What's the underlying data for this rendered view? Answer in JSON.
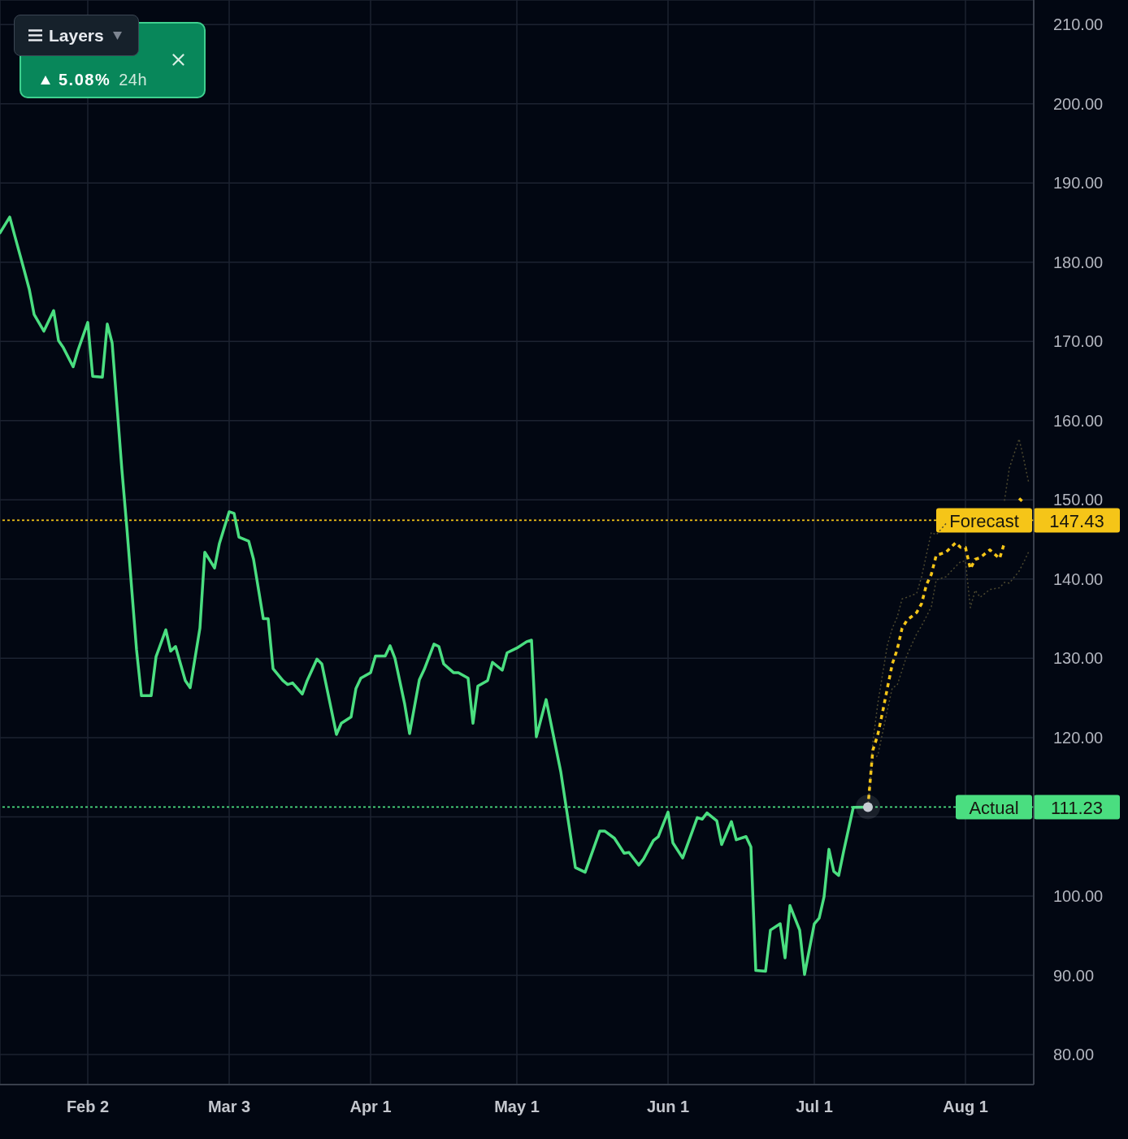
{
  "chart_data": {
    "type": "line",
    "x": [
      "--01-15",
      "--01-17",
      "--01-18",
      "--01-20",
      "--01-21",
      "--01-22",
      "--01-24",
      "--01-26",
      "--01-27",
      "--01-28",
      "--01-30",
      "--01-31",
      "--02-02",
      "--02-03",
      "--02-05",
      "--02-06",
      "--02-07",
      "--02-09",
      "--02-10",
      "--02-12",
      "--02-13",
      "--02-15",
      "--02-16",
      "--02-18",
      "--02-19",
      "--02-20",
      "--02-22",
      "--02-23",
      "--02-25",
      "--02-26",
      "--02-28",
      "--03-01",
      "--03-03",
      "--03-04",
      "--03-05",
      "--03-07",
      "--03-08",
      "--03-10",
      "--03-11",
      "--03-12",
      "--03-14",
      "--03-15",
      "--03-16",
      "--03-18",
      "--03-19",
      "--03-21",
      "--03-22",
      "--03-25",
      "--03-26",
      "--03-28",
      "--03-29",
      "--03-30",
      "--04-01",
      "--04-02",
      "--04-04",
      "--04-05",
      "--04-06",
      "--04-08",
      "--04-09",
      "--04-11",
      "--04-12",
      "--04-14",
      "--04-15",
      "--04-16",
      "--04-18",
      "--04-19",
      "--04-21",
      "--04-22",
      "--04-23",
      "--04-25",
      "--04-26",
      "--04-28",
      "--04-29",
      "--05-01",
      "--05-03",
      "--05-04",
      "--05-05",
      "--05-07",
      "--05-10",
      "--05-13",
      "--05-15",
      "--05-18",
      "--05-19",
      "--05-21",
      "--05-23",
      "--05-24",
      "--05-26",
      "--05-27",
      "--05-29",
      "--05-30",
      "--06-01",
      "--06-02",
      "--06-04",
      "--06-07",
      "--06-08",
      "--06-09",
      "--06-11",
      "--06-12",
      "--06-14",
      "--06-15",
      "--06-17",
      "--06-18",
      "--06-19",
      "--06-21",
      "--06-22",
      "--06-24",
      "--06-25",
      "--06-26",
      "--06-28",
      "--06-29",
      "--07-01",
      "--07-02",
      "--07-03",
      "--07-04",
      "--07-05",
      "--07-06",
      "--07-07",
      "--07-09",
      "--07-12"
    ],
    "series": [
      {
        "color": "#4ade80",
        "values": [
          183.7,
          185.7,
          183.4,
          178.9,
          176.6,
          173.4,
          171.3,
          173.9,
          170.1,
          169.2,
          166.8,
          168.9,
          172.4,
          165.6,
          165.5,
          172.2,
          169.8,
          153.8,
          146.6,
          131.1,
          125.3,
          125.3,
          130.2,
          133.6,
          130.9,
          131.5,
          127.2,
          126.3,
          133.8,
          143.4,
          141.4,
          144.5,
          148.5,
          148.3,
          145.3,
          144.8,
          142.5,
          135.0,
          135.0,
          128.7,
          127.2,
          126.7,
          126.9,
          125.5,
          127.2,
          129.9,
          129.3,
          120.4,
          121.8,
          122.6,
          126.2,
          127.5,
          128.2,
          130.3,
          130.3,
          131.6,
          130.0,
          124.2,
          120.5,
          127.3,
          128.6,
          131.8,
          131.5,
          129.3,
          128.2,
          128.2,
          127.5,
          121.8,
          126.5,
          127.2,
          129.5,
          128.5,
          130.7,
          131.3,
          132.1,
          132.3,
          120.1,
          124.8,
          115.7,
          103.6,
          103.0,
          108.2,
          108.2,
          107.3,
          105.4,
          105.5,
          103.9,
          104.7,
          107.0,
          107.5,
          110.6,
          106.7,
          104.8,
          109.9,
          109.7,
          110.5,
          109.5,
          106.5,
          109.4,
          107.1,
          107.5,
          106.2,
          90.6,
          90.5,
          95.7,
          96.5,
          92.2,
          98.8,
          95.7,
          90.1,
          96.5,
          97.2,
          99.9,
          105.9,
          103.1,
          102.6,
          105.6,
          111.2,
          111.23
        ]
      },
      {
        "color": "#4d4930",
        "line_style": "dotted",
        "x": [
          "--07-12",
          "--07-13",
          "--07-14",
          "--07-15",
          "--07-16",
          "--07-17",
          "--07-18",
          "--07-19",
          "--07-20",
          "--07-22",
          "--07-23",
          "--07-24",
          "--07-25",
          "--07-26",
          "--07-28",
          "--07-30",
          "--08-09",
          "--08-10",
          "--08-12",
          "--08-13",
          "--08-14"
        ],
        "values": [
          111.23,
          119.4,
          124.2,
          128.0,
          131.7,
          133.8,
          135.2,
          137.5,
          137.7,
          138.2,
          140.3,
          143.1,
          145.9,
          145.6,
          147.0,
          null,
          149.9,
          154.0,
          157.7,
          155.0,
          152.1
        ]
      },
      {
        "color": "#4d4930",
        "line_style": "dotted",
        "x": [
          "--07-12",
          "--07-13",
          "--07-14",
          "--07-15",
          "--07-16",
          "--07-17",
          "--07-18",
          "--07-19",
          "--07-20",
          "--07-22",
          "--07-23",
          "--07-24",
          "--07-25",
          "--07-26",
          "--07-28",
          "--07-30",
          "--07-31",
          "--08-01",
          "--08-02",
          "--08-03",
          "--08-04",
          "--08-06",
          "--08-08",
          "--08-09",
          "--08-10",
          "--08-12",
          "--08-13",
          "--08-14"
        ],
        "values": [
          111.23,
          117.4,
          117.7,
          120.6,
          123.5,
          126.3,
          126.6,
          128.5,
          130.4,
          133.1,
          134.1,
          135.3,
          136.5,
          139.9,
          140.3,
          141.6,
          142.2,
          142.3,
          136.4,
          138.6,
          137.7,
          138.7,
          138.9,
          139.6,
          139.5,
          141.0,
          142.2,
          143.5
        ]
      },
      {
        "color": "#f5c518",
        "line_style": "dashed",
        "x": [
          "--07-12",
          "--07-13",
          "--07-14",
          "--07-15",
          "--07-16",
          "--07-17",
          "--07-18",
          "--07-19",
          "--07-20",
          "--07-22",
          "--07-23",
          "--07-24",
          "--07-25",
          "--07-26",
          "--07-28",
          "--07-30",
          "--07-31",
          "--08-01",
          "--08-02",
          "--08-03",
          "--08-04",
          "--08-06",
          "--08-08",
          "--08-09",
          "--08-10",
          "--08-12",
          "--08-13"
        ],
        "values": [
          111.23,
          118.4,
          120.3,
          123.2,
          126.3,
          129.3,
          131.1,
          133.8,
          134.8,
          135.8,
          136.9,
          139.3,
          140.6,
          143.0,
          143.4,
          144.6,
          144.0,
          144.0,
          141.3,
          142.5,
          142.7,
          143.7,
          142.6,
          144.6,
          null,
          150.2,
          149.6
        ]
      },
      {
        "type": "scatter",
        "color": "#c8ccd4",
        "marker": "circle",
        "x": [
          "--07-12"
        ],
        "values": [
          111.23
        ]
      }
    ],
    "xlim": [
      "--01-15",
      "--08-15"
    ],
    "xticks": [
      {
        "value": "--02-02",
        "label": "Feb 2"
      },
      {
        "value": "--03-03",
        "label": "Mar 3"
      },
      {
        "value": "--04-01",
        "label": "Apr 1"
      },
      {
        "value": "--05-01",
        "label": "May 1"
      },
      {
        "value": "--06-01",
        "label": "Jun 1"
      },
      {
        "value": "--07-01",
        "label": "Jul 1"
      },
      {
        "value": "--08-01",
        "label": "Aug 1"
      }
    ],
    "ylim": [
      76.2,
      213.1
    ],
    "yticks": [
      {
        "value": 80,
        "label": "80.00"
      },
      {
        "value": 90,
        "label": "90.00"
      },
      {
        "value": 100,
        "label": "100.00"
      },
      {
        "value": 110,
        "label": null
      },
      {
        "value": 120,
        "label": "120.00"
      },
      {
        "value": 130,
        "label": "130.00"
      },
      {
        "value": 140,
        "label": "140.00"
      },
      {
        "value": 150,
        "label": "150.00"
      },
      {
        "value": 160,
        "label": "160.00"
      },
      {
        "value": 170,
        "label": "170.00"
      },
      {
        "value": 180,
        "label": "180.00"
      },
      {
        "value": 190,
        "label": "190.00"
      },
      {
        "value": 200,
        "label": "200.00"
      },
      {
        "value": 210,
        "label": "210.00"
      }
    ],
    "ref_lines": [
      {
        "axis": "y",
        "value": 147.43,
        "label": "Forecast",
        "color": "#f5c518",
        "line_style": "dotted"
      },
      {
        "axis": "y",
        "value": 111.23,
        "label": "Actual",
        "color": "#4ade80",
        "line_style": "dotted"
      }
    ],
    "grid": true,
    "annotations": [
      "Layers",
      "5.08%",
      "24h",
      "147.43",
      "111.23"
    ]
  }
}
